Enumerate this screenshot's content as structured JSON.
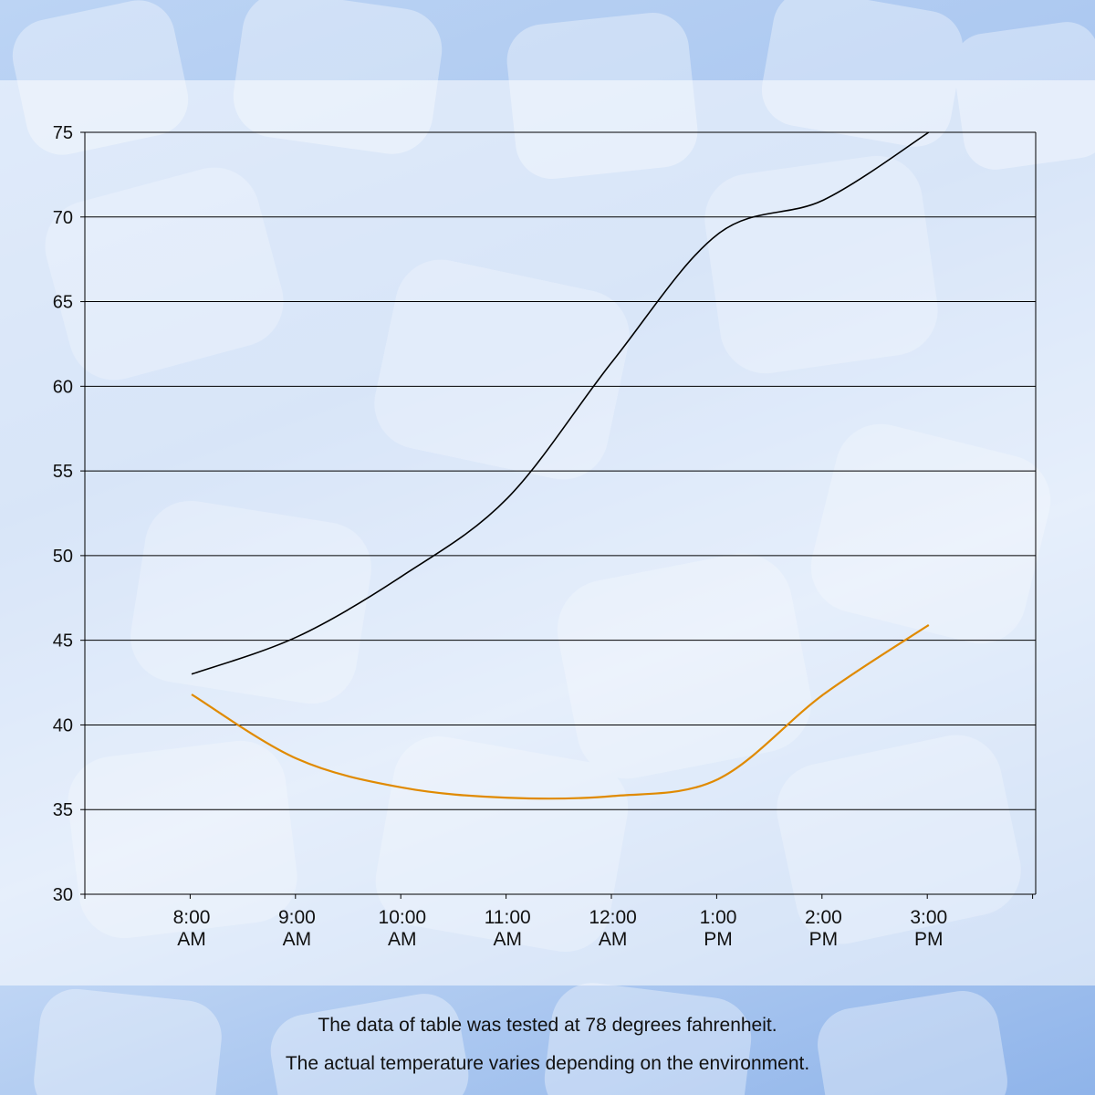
{
  "chart_data": {
    "type": "line",
    "categories": [
      "8:00 AM",
      "9:00 AM",
      "10:00 AM",
      "11:00 AM",
      "12:00 AM",
      "1:00 PM",
      "2:00 PM",
      "3:00 PM"
    ],
    "category_lines": [
      [
        "8:00",
        "AM"
      ],
      [
        "9:00",
        "AM"
      ],
      [
        "10:00",
        "AM"
      ],
      [
        "11:00",
        "AM"
      ],
      [
        "12:00",
        "AM"
      ],
      [
        "1:00",
        "PM"
      ],
      [
        "2:00",
        "PM"
      ],
      [
        "3:00",
        "PM"
      ]
    ],
    "series": [
      {
        "color": "#000000",
        "values": [
          43.0,
          45.2,
          48.8,
          53.4,
          61.5,
          69.0,
          71.0,
          75.0
        ]
      },
      {
        "color": "#e08a00",
        "values": [
          41.8,
          38.0,
          36.3,
          35.7,
          35.8,
          36.8,
          41.8,
          45.9
        ]
      }
    ],
    "ylim": [
      30,
      75
    ],
    "yticks": [
      30,
      35,
      40,
      45,
      50,
      55,
      60,
      65,
      70,
      75
    ],
    "grid": true,
    "legend": "none"
  },
  "notes": {
    "line1": "The data of table was tested at 78 degrees fahrenheit.",
    "line2": "The actual temperature varies depending on the environment."
  }
}
